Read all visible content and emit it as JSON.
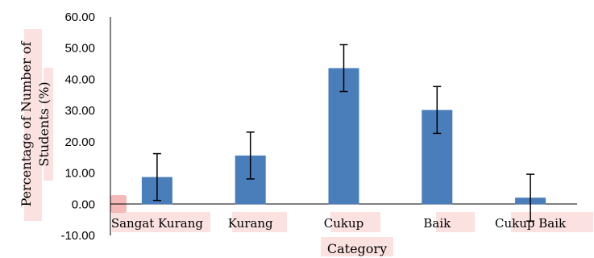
{
  "chart_data": {
    "type": "bar",
    "title": "",
    "xlabel": "Category",
    "ylabel": "Percentage of Number of Students (%)",
    "ylabel_lines": [
      "Percentage of Number of",
      "Students (%)"
    ],
    "categories": [
      "Sangat Kurang",
      "Kurang",
      "Cukup",
      "Baik",
      "Cukup Baik"
    ],
    "values": [
      8.7,
      15.6,
      43.6,
      30.2,
      2.1
    ],
    "error": [
      7.5,
      7.5,
      7.5,
      7.5,
      7.5
    ],
    "ylim": [
      -10,
      60
    ],
    "yticks": [
      -10,
      0,
      10,
      20,
      30,
      40,
      50,
      60
    ],
    "ytick_labels": [
      "-10.00",
      "0.00",
      "10.00",
      "20.00",
      "30.00",
      "40.00",
      "50.00",
      "60.00"
    ],
    "grid": false,
    "legend": "none",
    "bar_color": "#4a7ebb"
  }
}
